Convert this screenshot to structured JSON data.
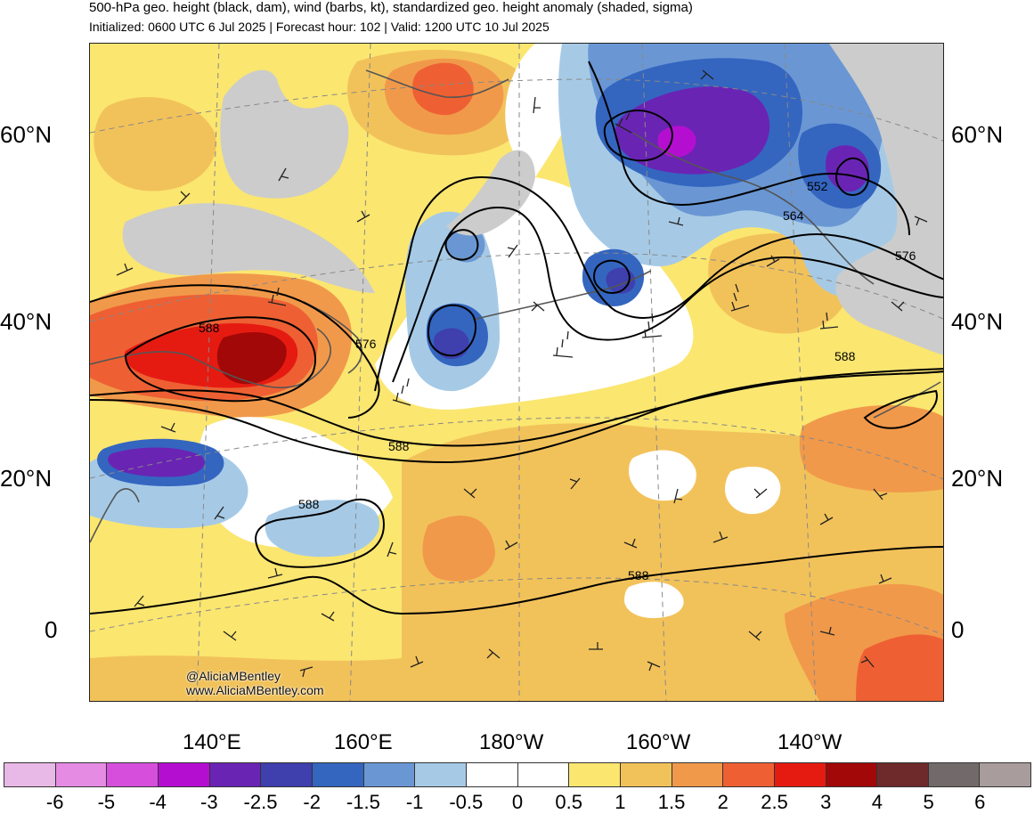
{
  "header": {
    "title": "500-hPa geo. height (black, dam), wind (barbs, kt), standardized geo. height anomaly (shaded, sigma)",
    "subtitle": "Initialized: 0600 UTC 6 Jul 2025 | Forecast hour: 102 | Valid: 1200 UTC 10 Jul 2025"
  },
  "map": {
    "lat_labels": [
      "60°N",
      "40°N",
      "20°N",
      "0"
    ],
    "lon_labels": [
      "140°E",
      "160°E",
      "180°W",
      "160°W",
      "140°W"
    ],
    "contour_labels": [
      "552",
      "564",
      "576",
      "576",
      "588",
      "588",
      "588",
      "588",
      "588"
    ],
    "credit": [
      "@AliciaMBentley",
      "www.AliciaMBentley.com"
    ]
  },
  "legend": {
    "colors": [
      "#e8b8e6",
      "#e58be3",
      "#d64fdc",
      "#b40fd0",
      "#6a24b4",
      "#3f3fae",
      "#3466c0",
      "#6a97d4",
      "#a6cae6",
      "#ffffff",
      "#ffffff",
      "#fbe670",
      "#f2c25a",
      "#f1994a",
      "#ee6033",
      "#e51b12",
      "#a20808",
      "#6e2a2a",
      "#726a6a",
      "#a89c9c"
    ],
    "ticks": [
      "-6",
      "-5",
      "-4",
      "-3",
      "-2.5",
      "-2",
      "-1.5",
      "-1",
      "-0.5",
      "0",
      "0.5",
      "1",
      "1.5",
      "2",
      "2.5",
      "3",
      "4",
      "5",
      "6"
    ]
  }
}
